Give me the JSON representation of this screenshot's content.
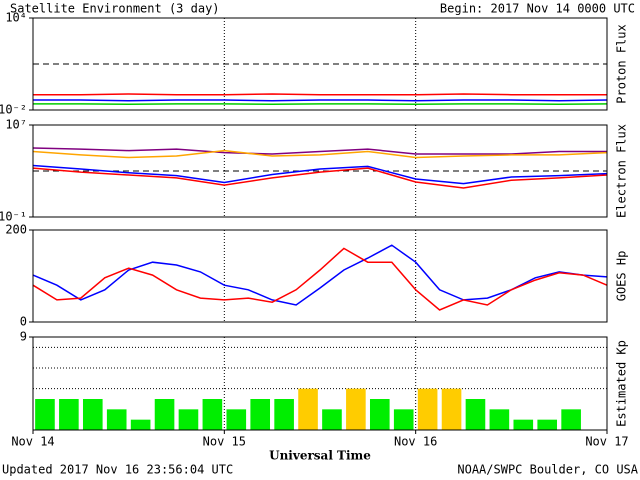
{
  "header": {
    "title": "Satellite Environment (3 day)",
    "begin": "Begin:  2017 Nov 14 0000 UTC"
  },
  "footer": {
    "updated": "Updated 2017 Nov 16 23:56:04 UTC",
    "credit": "NOAA/SWPC Boulder, CO USA",
    "xlabel": "Universal Time"
  },
  "chart_data": [
    {
      "type": "line",
      "ylabel": "Proton Flux",
      "log": true,
      "ylim": [
        0.01,
        10000
      ],
      "yticks": [
        {
          "value": 10000,
          "label": "10⁴"
        },
        {
          "value": 0.01,
          "label": "10⁻²"
        }
      ],
      "threshold": 10,
      "xlim": [
        0,
        72
      ],
      "x": [
        0,
        6,
        12,
        18,
        24,
        30,
        36,
        42,
        48,
        54,
        60,
        66,
        72
      ],
      "series": [
        {
          "color": "#ff0000",
          "values": [
            0.1,
            0.1,
            0.11,
            0.1,
            0.1,
            0.11,
            0.1,
            0.1,
            0.1,
            0.11,
            0.1,
            0.1,
            0.1
          ]
        },
        {
          "color": "#0000ff",
          "values": [
            0.045,
            0.045,
            0.04,
            0.045,
            0.045,
            0.04,
            0.045,
            0.045,
            0.04,
            0.045,
            0.045,
            0.04,
            0.045
          ]
        },
        {
          "color": "#00cc00",
          "values": [
            0.025,
            0.025,
            0.024,
            0.025,
            0.025,
            0.024,
            0.025,
            0.025,
            0.024,
            0.025,
            0.025,
            0.024,
            0.025
          ]
        }
      ]
    },
    {
      "type": "line",
      "ylabel": "Electron Flux",
      "log": true,
      "ylim": [
        0.1,
        10000000
      ],
      "yticks": [
        {
          "value": 10000000,
          "label": "10⁷"
        },
        {
          "value": 0.1,
          "label": "10⁻¹"
        }
      ],
      "threshold": 1000,
      "xlim": [
        0,
        72
      ],
      "x": [
        0,
        6,
        12,
        18,
        24,
        30,
        36,
        42,
        48,
        54,
        60,
        66,
        72
      ],
      "series": [
        {
          "color": "#800080",
          "values": [
            100000,
            80000,
            60000,
            80000,
            40000,
            30000,
            50000,
            80000,
            30000,
            30000,
            30000,
            50000,
            50000
          ]
        },
        {
          "color": "#ffa500",
          "values": [
            50000,
            25000,
            15000,
            20000,
            60000,
            20000,
            25000,
            50000,
            15000,
            20000,
            25000,
            25000,
            40000
          ]
        },
        {
          "color": "#0000ff",
          "values": [
            3000,
            1500,
            700,
            400,
            100,
            500,
            1500,
            2500,
            200,
            80,
            300,
            400,
            600
          ]
        },
        {
          "color": "#ff0000",
          "values": [
            1800,
            800,
            450,
            250,
            60,
            250,
            800,
            1800,
            110,
            33,
            160,
            250,
            450
          ]
        }
      ]
    },
    {
      "type": "line",
      "ylabel": "GOES Hp",
      "log": false,
      "ylim": [
        0,
        200
      ],
      "yticks": [
        200,
        0
      ],
      "xlim": [
        0,
        72
      ],
      "x": [
        0,
        3,
        6,
        9,
        12,
        15,
        18,
        21,
        24,
        27,
        30,
        33,
        36,
        39,
        42,
        45,
        48,
        51,
        54,
        57,
        60,
        63,
        66,
        69,
        72
      ],
      "series": [
        {
          "color": "#0000ff",
          "values": [
            102,
            80,
            48,
            70,
            113,
            130,
            124,
            109,
            80,
            70,
            48,
            37,
            74,
            113,
            139,
            167,
            130,
            70,
            48,
            52,
            70,
            96,
            109,
            102,
            98
          ]
        },
        {
          "color": "#ff0000",
          "values": [
            80,
            48,
            52,
            96,
            117,
            102,
            70,
            52,
            48,
            52,
            43,
            70,
            113,
            160,
            130,
            130,
            70,
            26,
            48,
            37,
            70,
            91,
            107,
            102,
            80
          ]
        }
      ]
    },
    {
      "type": "bar",
      "ylabel": "Estimated Kp",
      "log": false,
      "ylim": [
        0,
        9
      ],
      "yticks": [
        9
      ],
      "ygrid": [
        4,
        6,
        8
      ],
      "xlim": [
        0,
        72
      ],
      "xticks": [
        {
          "value": 0,
          "label": "Nov 14"
        },
        {
          "value": 24,
          "label": "Nov 15"
        },
        {
          "value": 48,
          "label": "Nov 16"
        },
        {
          "value": 72,
          "label": "Nov 17"
        }
      ],
      "x": [
        1.5,
        4.5,
        7.5,
        10.5,
        13.5,
        16.5,
        19.5,
        22.5,
        25.5,
        28.5,
        31.5,
        34.5,
        37.5,
        40.5,
        43.5,
        46.5,
        49.5,
        52.5,
        55.5,
        58.5,
        61.5,
        64.5,
        67.5,
        70.5
      ],
      "values": [
        3,
        3,
        3,
        2,
        1,
        3,
        2,
        3,
        2,
        3,
        3,
        4,
        2,
        4,
        3,
        2,
        4,
        4,
        3,
        2,
        1,
        1,
        2,
        null
      ],
      "colors": [
        "#00ee00",
        "#00ee00",
        "#00ee00",
        "#00ee00",
        "#00ee00",
        "#00ee00",
        "#00ee00",
        "#00ee00",
        "#00ee00",
        "#00ee00",
        "#00ee00",
        "#ffcc00",
        "#00ee00",
        "#ffcc00",
        "#00ee00",
        "#00ee00",
        "#ffcc00",
        "#ffcc00",
        "#00ee00",
        "#00ee00",
        "#00ee00",
        "#00ee00",
        "#00ee00",
        null
      ]
    }
  ]
}
